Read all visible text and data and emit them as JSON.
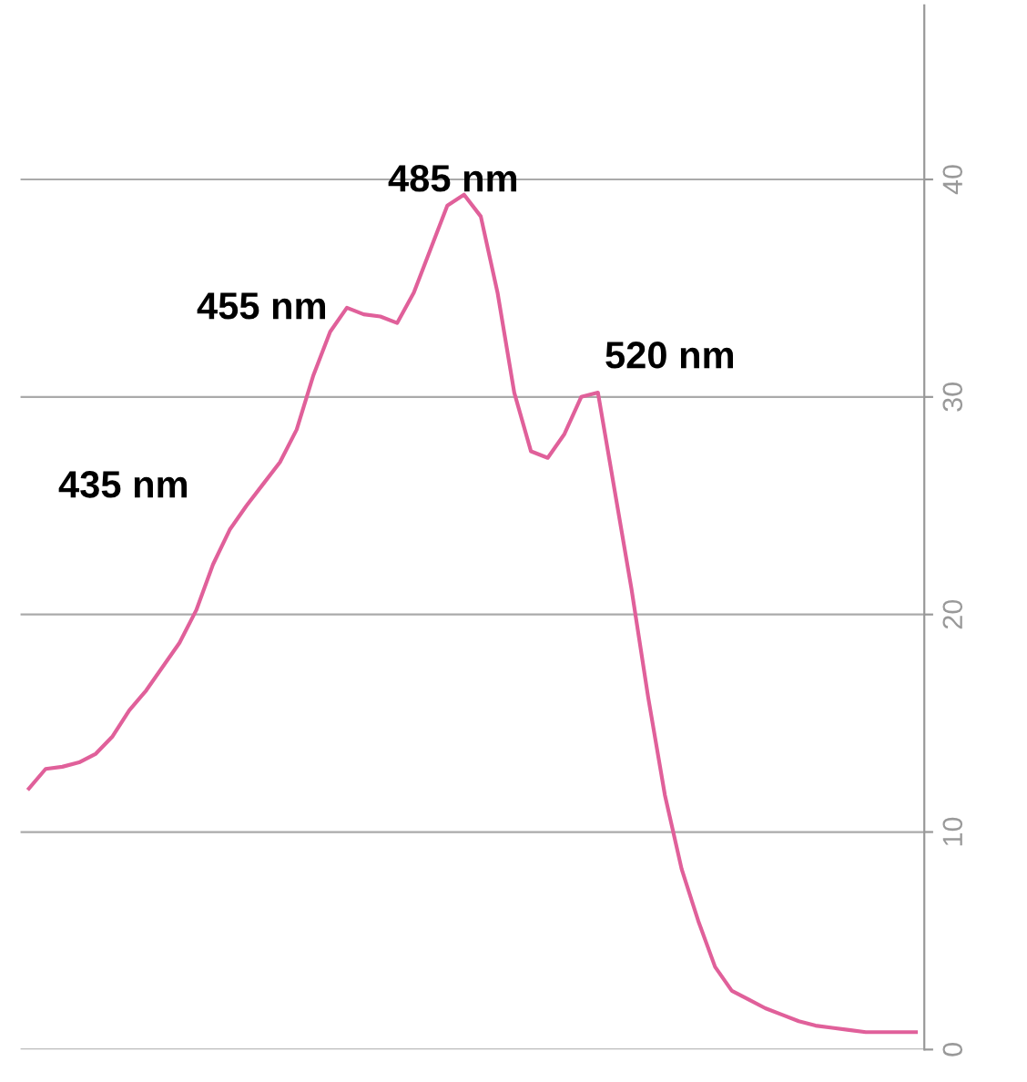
{
  "chart_data": {
    "type": "line",
    "categories": [
      null,
      null,
      null,
      null,
      null,
      null,
      null,
      null,
      null,
      null,
      null,
      null,
      null,
      null,
      null,
      null,
      null,
      null,
      null,
      null,
      null,
      null,
      null,
      null,
      null,
      null,
      null,
      null,
      null,
      null,
      null,
      null,
      null,
      null,
      null,
      null,
      null,
      null,
      null,
      null,
      null,
      null,
      null,
      null,
      null,
      null,
      null,
      null,
      null,
      null,
      null,
      null,
      null,
      null
    ],
    "series": [
      {
        "color": "#e0609a",
        "values": [
          12.0,
          12.9,
          13.0,
          13.2,
          13.6,
          14.4,
          15.6,
          16.5,
          17.6,
          18.7,
          20.2,
          22.3,
          23.9,
          25.0,
          26.0,
          27.0,
          28.5,
          31.0,
          33.0,
          34.1,
          33.8,
          33.7,
          33.4,
          34.8,
          36.8,
          38.8,
          39.3,
          38.3,
          34.8,
          30.2,
          27.5,
          27.2,
          28.3,
          30.0,
          30.2,
          25.7,
          21.2,
          16.2,
          11.7,
          8.3,
          5.9,
          3.8,
          2.7,
          2.3,
          1.9,
          1.6,
          1.3,
          1.1,
          1.0,
          0.9,
          0.8,
          0.8,
          0.8,
          0.8
        ]
      }
    ],
    "annotations": [
      "435 nm",
      "455 nm",
      "485 nm",
      "520 nm"
    ],
    "ylim": [
      0,
      48
    ],
    "yticks": [
      0,
      10,
      20,
      30,
      40
    ],
    "grid": "y",
    "marker": "none",
    "line_style": "solid"
  }
}
